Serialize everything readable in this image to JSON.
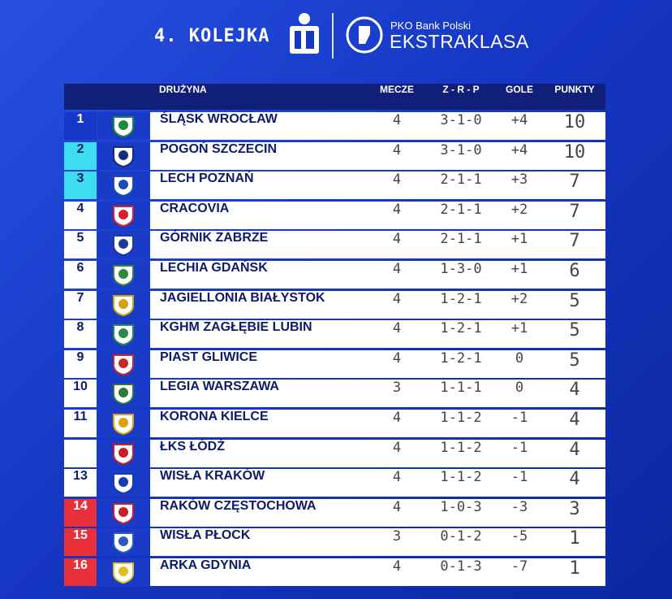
{
  "header": {
    "round": "4. KOLEJKA",
    "brand_top": "PKO Bank Polski",
    "brand": "EKSTRAKLASA"
  },
  "table": {
    "columns": [
      "DRUŻYNA",
      "MECZE",
      "Z - R - P",
      "GOLE",
      "PUNKTY"
    ],
    "rows": [
      {
        "pos": "1",
        "team": "ŚLĄSK WROCŁAW",
        "played": "4",
        "zrp": "3-1-0",
        "goals": "+4",
        "points": "10"
      },
      {
        "pos": "2",
        "team": "POGOŃ SZCZECIN",
        "played": "4",
        "zrp": "3-1-0",
        "goals": "+4",
        "points": "10"
      },
      {
        "pos": "3",
        "team": "LECH POZNAŃ",
        "played": "4",
        "zrp": "2-1-1",
        "goals": "+3",
        "points": "7"
      },
      {
        "pos": "4",
        "team": "CRACOVIA",
        "played": "4",
        "zrp": "2-1-1",
        "goals": "+2",
        "points": "7"
      },
      {
        "pos": "5",
        "team": "GÓRNIK ZABRZE",
        "played": "4",
        "zrp": "2-1-1",
        "goals": "+1",
        "points": "7"
      },
      {
        "pos": "6",
        "team": "LECHIA GDAŃSK",
        "played": "4",
        "zrp": "1-3-0",
        "goals": "+1",
        "points": "6"
      },
      {
        "pos": "7",
        "team": "JAGIELLONIA BIAŁYSTOK",
        "played": "4",
        "zrp": "1-2-1",
        "goals": "+2",
        "points": "5"
      },
      {
        "pos": "8",
        "team": "KGHM ZAGŁĘBIE LUBIN",
        "played": "4",
        "zrp": "1-2-1",
        "goals": "+1",
        "points": "5"
      },
      {
        "pos": "9",
        "team": "PIAST GLIWICE",
        "played": "4",
        "zrp": "1-2-1",
        "goals": "0",
        "points": "5"
      },
      {
        "pos": "10",
        "team": "LEGIA WARSZAWA",
        "played": "3",
        "zrp": "1-1-1",
        "goals": "0",
        "points": "4"
      },
      {
        "pos": "11",
        "team": "KORONA KIELCE",
        "played": "4",
        "zrp": "1-1-2",
        "goals": "-1",
        "points": "4"
      },
      {
        "team": "ŁKS ŁÓDŹ",
        "played": "4",
        "zrp": "1-1-2",
        "goals": "-1",
        "points": "4"
      },
      {
        "pos": "13",
        "team": "WISŁA KRAKÓW",
        "played": "4",
        "zrp": "1-1-2",
        "goals": "-1",
        "points": "4"
      },
      {
        "pos": "14",
        "team": "RAKÓW CZĘSTOCHOWA",
        "played": "4",
        "zrp": "1-0-3",
        "goals": "-3",
        "points": "3"
      },
      {
        "pos": "15",
        "team": "WISŁA PŁOCK",
        "played": "3",
        "zrp": "0-1-2",
        "goals": "-5",
        "points": "1"
      },
      {
        "pos": "16",
        "team": "ARKA GDYNIA",
        "played": "4",
        "zrp": "0-1-3",
        "goals": "-7",
        "points": "1"
      }
    ]
  }
}
